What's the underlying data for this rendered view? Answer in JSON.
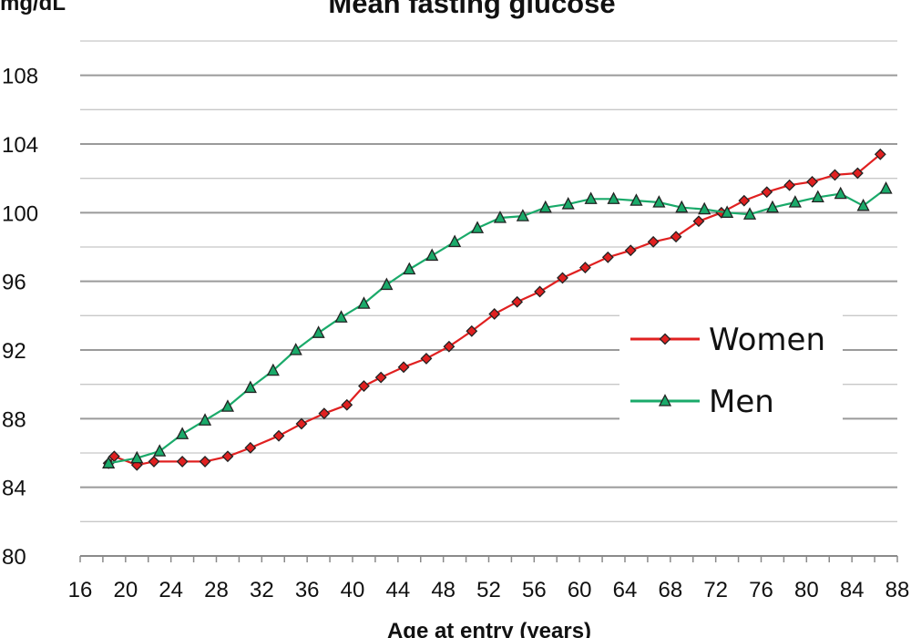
{
  "chart_data": {
    "type": "line",
    "title": "Mean fasting glucose",
    "ylabel": "mg/dL",
    "xlabel": "Age at entry (years)",
    "xlim": [
      16,
      88
    ],
    "ylim": [
      80,
      110
    ],
    "x_ticks": [
      16,
      20,
      24,
      28,
      32,
      36,
      40,
      44,
      48,
      52,
      56,
      60,
      64,
      68,
      72,
      76,
      80,
      84,
      88
    ],
    "y_ticks": [
      80,
      84,
      88,
      92,
      96,
      100,
      104,
      108
    ],
    "grid": true,
    "legend_position": "right",
    "series": [
      {
        "name": "Women",
        "color": "#e02020",
        "marker": "diamond",
        "x": [
          18.5,
          19,
          21,
          22.5,
          25,
          27,
          29,
          31,
          33.5,
          35.5,
          37.5,
          39.5,
          41,
          42.5,
          44.5,
          46.5,
          48.5,
          50.5,
          52.5,
          54.5,
          56.5,
          58.5,
          60.5,
          62.5,
          64.5,
          66.5,
          68.5,
          70.5,
          72.5,
          74.5,
          76.5,
          78.5,
          80.5,
          82.5,
          84.5,
          86.5
        ],
        "values": [
          85.4,
          85.8,
          85.3,
          85.5,
          85.5,
          85.5,
          85.8,
          86.3,
          87.0,
          87.7,
          88.3,
          88.8,
          89.9,
          90.4,
          91.0,
          91.5,
          92.2,
          93.1,
          94.1,
          94.8,
          95.4,
          96.2,
          96.8,
          97.4,
          97.8,
          98.3,
          98.6,
          99.5,
          100.0,
          100.7,
          101.2,
          101.6,
          101.8,
          102.2,
          102.3,
          103.4
        ]
      },
      {
        "name": "Men",
        "color": "#1aaa6a",
        "marker": "triangle",
        "x": [
          18.5,
          21,
          23,
          25,
          27,
          29,
          31,
          33,
          35,
          37,
          39,
          41,
          43,
          45,
          47,
          49,
          51,
          53,
          55,
          57,
          59,
          61,
          63,
          65,
          67,
          69,
          71,
          73,
          75,
          77,
          79,
          81,
          83,
          85,
          87
        ],
        "values": [
          85.4,
          85.7,
          86.1,
          87.1,
          87.9,
          88.7,
          89.8,
          90.8,
          92.0,
          93.0,
          93.9,
          94.7,
          95.8,
          96.7,
          97.5,
          98.3,
          99.1,
          99.7,
          99.8,
          100.3,
          100.5,
          100.8,
          100.8,
          100.7,
          100.6,
          100.3,
          100.2,
          100.0,
          99.9,
          100.3,
          100.6,
          100.9,
          101.1,
          100.4,
          101.4
        ]
      }
    ]
  }
}
